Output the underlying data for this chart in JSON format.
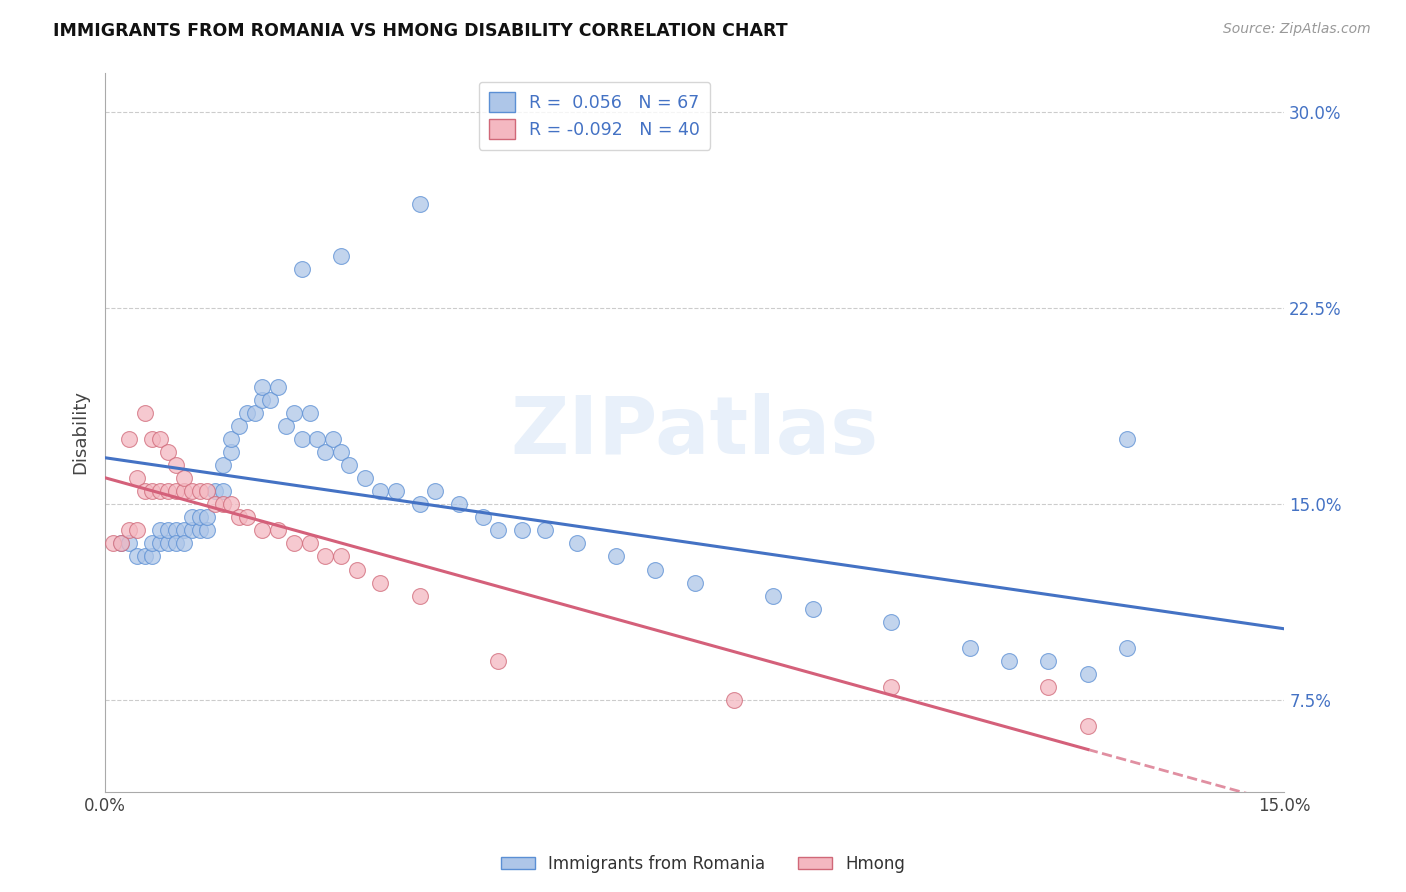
{
  "title": "IMMIGRANTS FROM ROMANIA VS HMONG DISABILITY CORRELATION CHART",
  "source": "Source: ZipAtlas.com",
  "ylabel": "Disability",
  "xlim": [
    0.0,
    0.15
  ],
  "ylim": [
    0.04,
    0.315
  ],
  "yticks": [
    0.075,
    0.15,
    0.225,
    0.3
  ],
  "ytick_labels": [
    "7.5%",
    "15.0%",
    "22.5%",
    "30.0%"
  ],
  "xticks": [
    0.0,
    0.03,
    0.06,
    0.09,
    0.12,
    0.15
  ],
  "xtick_labels": [
    "0.0%",
    "",
    "",
    "",
    "",
    "15.0%"
  ],
  "romania_color": "#aec6e8",
  "hmong_color": "#f4b8c1",
  "romania_edge_color": "#5b8fd4",
  "hmong_edge_color": "#d06878",
  "romania_line_color": "#4472c4",
  "hmong_line_color": "#d4607a",
  "watermark": "ZIPatlas",
  "romania_x": [
    0.002,
    0.003,
    0.004,
    0.005,
    0.006,
    0.006,
    0.007,
    0.007,
    0.008,
    0.008,
    0.009,
    0.009,
    0.01,
    0.01,
    0.011,
    0.011,
    0.012,
    0.012,
    0.013,
    0.013,
    0.014,
    0.015,
    0.015,
    0.016,
    0.016,
    0.017,
    0.018,
    0.019,
    0.02,
    0.02,
    0.021,
    0.022,
    0.023,
    0.024,
    0.025,
    0.026,
    0.027,
    0.028,
    0.029,
    0.03,
    0.031,
    0.033,
    0.035,
    0.037,
    0.04,
    0.042,
    0.045,
    0.048,
    0.05,
    0.053,
    0.056,
    0.06,
    0.065,
    0.07,
    0.075,
    0.085,
    0.09,
    0.1,
    0.11,
    0.115,
    0.12,
    0.125,
    0.13,
    0.025,
    0.03,
    0.04,
    0.13
  ],
  "romania_y": [
    0.135,
    0.135,
    0.13,
    0.13,
    0.13,
    0.135,
    0.135,
    0.14,
    0.135,
    0.14,
    0.14,
    0.135,
    0.14,
    0.135,
    0.14,
    0.145,
    0.14,
    0.145,
    0.14,
    0.145,
    0.155,
    0.155,
    0.165,
    0.17,
    0.175,
    0.18,
    0.185,
    0.185,
    0.19,
    0.195,
    0.19,
    0.195,
    0.18,
    0.185,
    0.175,
    0.185,
    0.175,
    0.17,
    0.175,
    0.17,
    0.165,
    0.16,
    0.155,
    0.155,
    0.15,
    0.155,
    0.15,
    0.145,
    0.14,
    0.14,
    0.14,
    0.135,
    0.13,
    0.125,
    0.12,
    0.115,
    0.11,
    0.105,
    0.095,
    0.09,
    0.09,
    0.085,
    0.095,
    0.24,
    0.245,
    0.265,
    0.175
  ],
  "hmong_x": [
    0.001,
    0.002,
    0.003,
    0.003,
    0.004,
    0.004,
    0.005,
    0.005,
    0.006,
    0.006,
    0.007,
    0.007,
    0.008,
    0.008,
    0.009,
    0.009,
    0.01,
    0.01,
    0.011,
    0.012,
    0.013,
    0.014,
    0.015,
    0.016,
    0.017,
    0.018,
    0.02,
    0.022,
    0.024,
    0.026,
    0.028,
    0.03,
    0.032,
    0.035,
    0.04,
    0.05,
    0.08,
    0.1,
    0.12,
    0.125
  ],
  "hmong_y": [
    0.135,
    0.135,
    0.14,
    0.175,
    0.14,
    0.16,
    0.155,
    0.185,
    0.155,
    0.175,
    0.155,
    0.175,
    0.155,
    0.17,
    0.155,
    0.165,
    0.155,
    0.16,
    0.155,
    0.155,
    0.155,
    0.15,
    0.15,
    0.15,
    0.145,
    0.145,
    0.14,
    0.14,
    0.135,
    0.135,
    0.13,
    0.13,
    0.125,
    0.12,
    0.115,
    0.09,
    0.075,
    0.08,
    0.08,
    0.065
  ],
  "legend_label_romania": "R =  0.056   N = 67",
  "legend_label_hmong": "R = -0.092   N = 40",
  "bottom_legend_romania": "Immigrants from Romania",
  "bottom_legend_hmong": "Hmong"
}
